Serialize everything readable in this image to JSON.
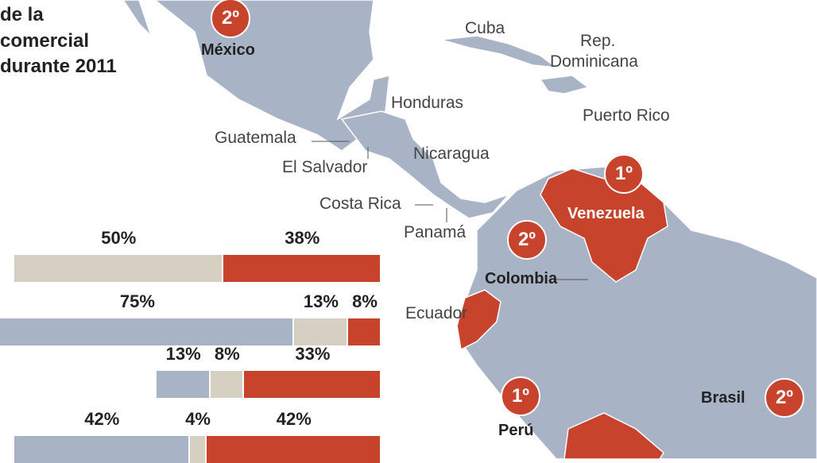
{
  "title_lines": [
    "de la",
    "comercial",
    "durante 2011"
  ],
  "colors": {
    "map": "#a9b3c6",
    "highlight": "#c8432b",
    "beige": "#d5d0c2",
    "blue": "#a9b3c6"
  },
  "map_labels": {
    "cuba": "Cuba",
    "rep_dom": "Rep.",
    "rep_dom2": "Dominicana",
    "honduras": "Honduras",
    "puerto_rico": "Puerto Rico",
    "guatemala": "Guatemala",
    "el_salvador": "El Salvador",
    "nicaragua": "Nicaragua",
    "costa_rica": "Costa Rica",
    "panama": "Panamá",
    "ecuador": "Ecuador"
  },
  "ranked": [
    {
      "country": "México",
      "rank": "2º"
    },
    {
      "country": "Venezuela",
      "rank": "1º"
    },
    {
      "country": "Colombia",
      "rank": "2º"
    },
    {
      "country": "Perú",
      "rank": "1º"
    },
    {
      "country": "Brasil",
      "rank": "2º"
    }
  ],
  "chart_data": {
    "type": "bar",
    "stacked": true,
    "rows": [
      {
        "segments": [
          {
            "color": "beige",
            "value": 50,
            "label": "50%"
          },
          {
            "color": "red",
            "value": 38,
            "label": "38%"
          }
        ]
      },
      {
        "segments": [
          {
            "color": "blue",
            "value": 75,
            "label": "75%"
          },
          {
            "color": "beige",
            "value": 13,
            "label": "13%"
          },
          {
            "color": "red",
            "value": 8,
            "label": "8%"
          }
        ]
      },
      {
        "segments": [
          {
            "color": "blue",
            "value": 13,
            "label": "13%"
          },
          {
            "color": "beige",
            "value": 8,
            "label": "8%"
          },
          {
            "color": "red",
            "value": 33,
            "label": "33%"
          }
        ]
      },
      {
        "segments": [
          {
            "color": "blue",
            "value": 42,
            "label": "42%"
          },
          {
            "color": "beige",
            "value": 4,
            "label": "4%"
          },
          {
            "color": "red",
            "value": 42,
            "label": "42%"
          }
        ]
      }
    ]
  }
}
